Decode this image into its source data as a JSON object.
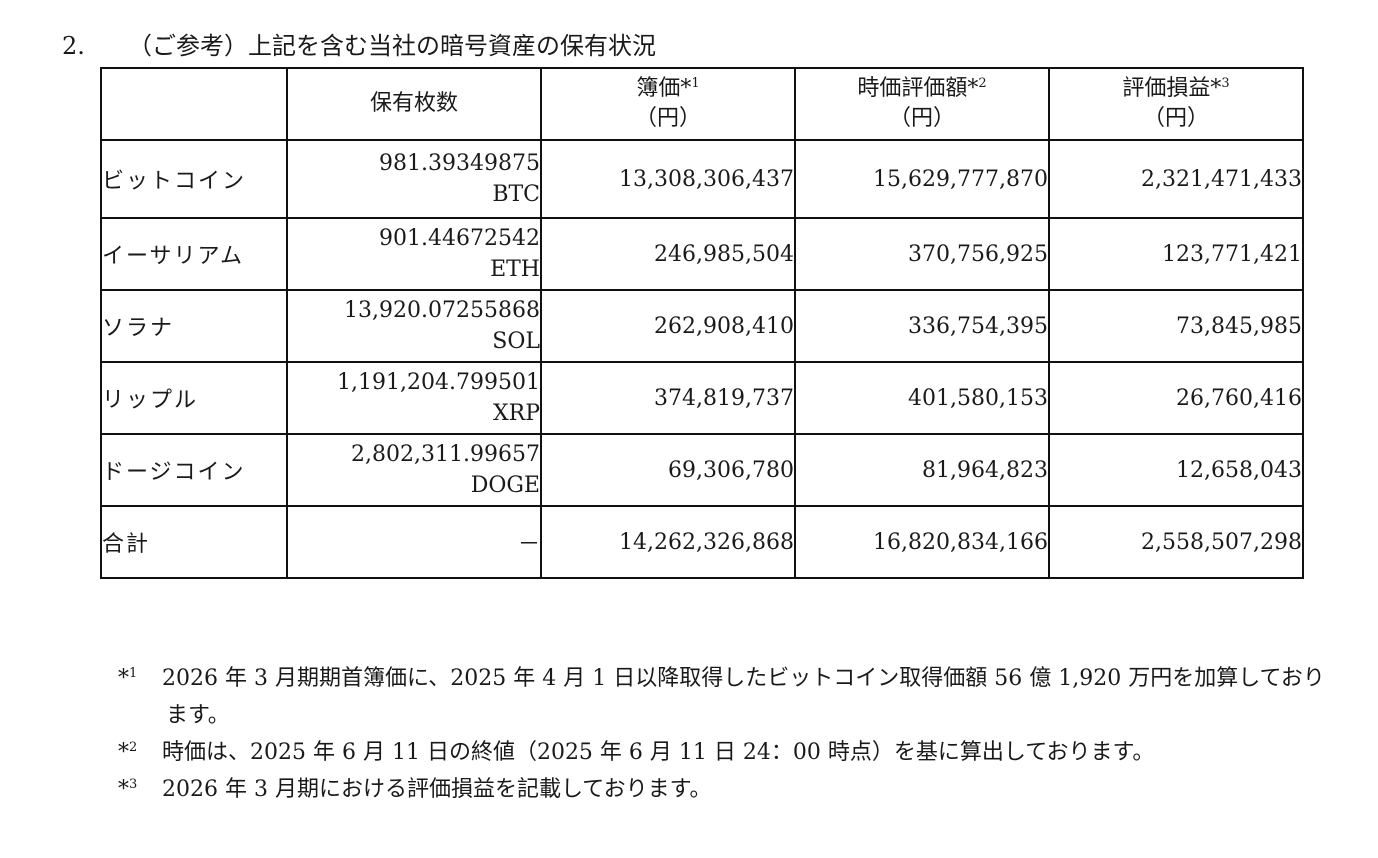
{
  "heading": {
    "number": "2.",
    "title": "（ご参考）上記を含む当社の暗号資産の保有状況"
  },
  "table": {
    "headers": {
      "blank": "",
      "quantity": "保有枚数",
      "book_value": "簿価",
      "book_value_mark": "*",
      "book_value_sup": "1",
      "book_value_unit": "（円）",
      "market_value": "時価評価額",
      "market_value_mark": "*",
      "market_value_sup": "2",
      "market_value_unit": "（円）",
      "gain": "評価損益",
      "gain_mark": "*",
      "gain_sup": "3",
      "gain_unit": "（円）"
    },
    "rows": [
      {
        "name": "ビットコイン",
        "quantity": "981.39349875",
        "unit": "BTC",
        "book_value": "13,308,306,437",
        "market_value": "15,629,777,870",
        "gain": "2,321,471,433"
      },
      {
        "name": "イーサリアム",
        "quantity": "901.44672542",
        "unit": "ETH",
        "book_value": "246,985,504",
        "market_value": "370,756,925",
        "gain": "123,771,421"
      },
      {
        "name": "ソラナ",
        "quantity": "13,920.07255868",
        "unit": "SOL",
        "book_value": "262,908,410",
        "market_value": "336,754,395",
        "gain": "73,845,985"
      },
      {
        "name": "リップル",
        "quantity": "1,191,204.799501",
        "unit": "XRP",
        "book_value": "374,819,737",
        "market_value": "401,580,153",
        "gain": "26,760,416"
      },
      {
        "name": "ドージコイン",
        "quantity": "2,802,311.99657",
        "unit": "DOGE",
        "book_value": "69,306,780",
        "market_value": "81,964,823",
        "gain": "12,658,043"
      }
    ],
    "total": {
      "name": "合計",
      "quantity": "－",
      "book_value": "14,262,326,868",
      "market_value": "16,820,834,166",
      "gain": "2,558,507,298"
    }
  },
  "notes": [
    {
      "mark": "*",
      "sup": "1",
      "text": "2026 年 3 月期期首簿価に、2025 年 4 月 1 日以降取得したビットコイン取得価額 56 億 1,920 万円を加算しており",
      "continuation": "ます。"
    },
    {
      "mark": "*",
      "sup": "2",
      "text": "時価は、2025 年 6 月 11 日の終値（2025 年 6 月 11 日 24：00 時点）を基に算出しております。"
    },
    {
      "mark": "*",
      "sup": "3",
      "text": "2026 年 3 月期における評価損益を記載しております。"
    }
  ]
}
